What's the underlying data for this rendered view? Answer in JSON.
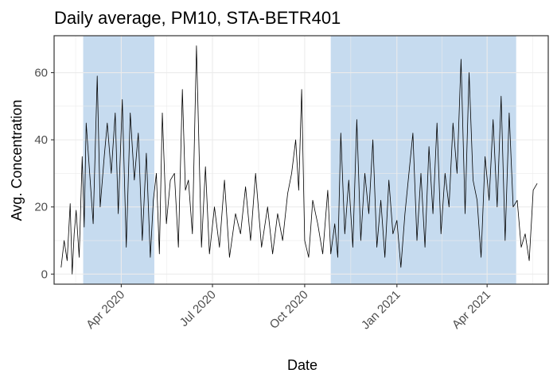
{
  "chart_data": {
    "type": "line",
    "title": "Daily average, PM10, STA-BETR401",
    "xlabel": "Date",
    "ylabel": "Avg. Concentration",
    "xlim": [
      "2020-01-25",
      "2021-06-01"
    ],
    "ylim": [
      -3,
      71
    ],
    "x_ticks": [
      {
        "date": "2020-04-01",
        "label": "Apr 2020"
      },
      {
        "date": "2020-07-01",
        "label": "Jul 2020"
      },
      {
        "date": "2020-10-01",
        "label": "Oct 2020"
      },
      {
        "date": "2021-01-01",
        "label": "Jan 2021"
      },
      {
        "date": "2021-04-01",
        "label": "Apr 2021"
      }
    ],
    "y_ticks": [
      0,
      20,
      40,
      60
    ],
    "grid": true,
    "colors": {
      "line": "#000000",
      "shade": "#c6dbef",
      "grid": "#ebebeb",
      "border": "#333333"
    },
    "shaded_periods": [
      {
        "start": "2020-02-23",
        "end": "2020-05-04"
      },
      {
        "start": "2020-10-27",
        "end": "2021-04-30"
      }
    ],
    "series": [
      {
        "x": [
          "2020-02-01",
          "2020-02-04",
          "2020-02-07",
          "2020-02-10",
          "2020-02-12",
          "2020-02-14",
          "2020-02-16",
          "2020-02-19",
          "2020-02-22",
          "2020-02-24",
          "2020-02-26",
          "2020-03-01",
          "2020-03-04",
          "2020-03-08",
          "2020-03-11",
          "2020-03-15",
          "2020-03-18",
          "2020-03-22",
          "2020-03-26",
          "2020-03-29",
          "2020-04-02",
          "2020-04-06",
          "2020-04-10",
          "2020-04-14",
          "2020-04-18",
          "2020-04-22",
          "2020-04-26",
          "2020-04-30",
          "2020-05-03",
          "2020-05-06",
          "2020-05-09",
          "2020-05-12",
          "2020-05-16",
          "2020-05-20",
          "2020-05-24",
          "2020-05-28",
          "2020-06-01",
          "2020-06-04",
          "2020-06-07",
          "2020-06-11",
          "2020-06-15",
          "2020-06-20",
          "2020-06-24",
          "2020-06-28",
          "2020-07-03",
          "2020-07-08",
          "2020-07-13",
          "2020-07-18",
          "2020-07-24",
          "2020-07-29",
          "2020-08-03",
          "2020-08-08",
          "2020-08-13",
          "2020-08-19",
          "2020-08-25",
          "2020-08-30",
          "2020-09-04",
          "2020-09-09",
          "2020-09-14",
          "2020-09-18",
          "2020-09-22",
          "2020-09-25",
          "2020-09-28",
          "2020-10-01",
          "2020-10-05",
          "2020-10-09",
          "2020-10-14",
          "2020-10-19",
          "2020-10-24",
          "2020-10-27",
          "2020-10-31",
          "2020-11-03",
          "2020-11-06",
          "2020-11-10",
          "2020-11-14",
          "2020-11-18",
          "2020-11-22",
          "2020-11-26",
          "2020-11-30",
          "2020-12-04",
          "2020-12-08",
          "2020-12-12",
          "2020-12-16",
          "2020-12-20",
          "2020-12-24",
          "2020-12-28",
          "2021-01-01",
          "2021-01-05",
          "2021-01-09",
          "2021-01-13",
          "2021-01-17",
          "2021-01-21",
          "2021-01-25",
          "2021-01-29",
          "2021-02-02",
          "2021-02-06",
          "2021-02-10",
          "2021-02-14",
          "2021-02-18",
          "2021-02-22",
          "2021-02-26",
          "2021-03-02",
          "2021-03-06",
          "2021-03-10",
          "2021-03-14",
          "2021-03-18",
          "2021-03-22",
          "2021-03-26",
          "2021-03-30",
          "2021-04-03",
          "2021-04-07",
          "2021-04-11",
          "2021-04-15",
          "2021-04-19",
          "2021-04-23",
          "2021-04-27",
          "2021-05-01",
          "2021-05-05",
          "2021-05-09",
          "2021-05-13",
          "2021-05-17",
          "2021-05-21"
        ],
        "y": [
          2,
          10,
          4,
          21,
          0,
          12,
          19,
          5,
          35,
          14,
          45,
          28,
          15,
          59,
          20,
          35,
          45,
          30,
          48,
          18,
          52,
          8,
          48,
          28,
          42,
          10,
          36,
          5,
          22,
          30,
          6,
          48,
          15,
          28,
          30,
          8,
          55,
          25,
          28,
          12,
          68,
          8,
          32,
          6,
          20,
          8,
          28,
          5,
          18,
          12,
          26,
          10,
          30,
          8,
          20,
          6,
          18,
          10,
          24,
          30,
          40,
          25,
          55,
          10,
          5,
          22,
          15,
          6,
          25,
          6,
          15,
          5,
          42,
          12,
          28,
          8,
          46,
          10,
          30,
          18,
          40,
          8,
          22,
          5,
          28,
          12,
          16,
          2,
          18,
          30,
          42,
          10,
          30,
          8,
          38,
          18,
          45,
          12,
          30,
          20,
          45,
          30,
          64,
          18,
          60,
          28,
          22,
          5,
          35,
          22,
          46,
          20,
          53,
          10,
          48,
          20,
          22,
          8,
          12,
          4,
          25,
          27
        ]
      }
    ]
  }
}
